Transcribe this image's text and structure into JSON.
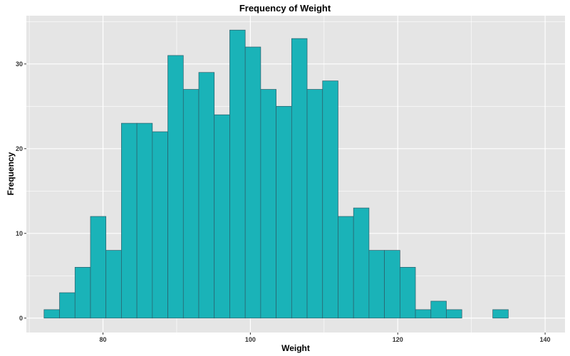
{
  "chart_data": {
    "type": "bar",
    "title": "Frequency of Weight",
    "xlabel": "Weight",
    "ylabel": "Frequency",
    "colors": {
      "fill": "#1ab3b8",
      "stroke": "#2c5e6a",
      "panel": "#e5e5e5",
      "grid": "#ffffff"
    },
    "xlim": [
      69.6,
      142.7
    ],
    "ylim": [
      -1.7,
      35.7
    ],
    "x_ticks": [
      80,
      100,
      120,
      140
    ],
    "y_ticks": [
      0,
      10,
      20,
      30
    ],
    "bin_width": 2.1,
    "bin_start": 72.0,
    "values": [
      1,
      3,
      6,
      12,
      8,
      23,
      23,
      22,
      31,
      27,
      29,
      24,
      34,
      32,
      27,
      25,
      33,
      27,
      28,
      12,
      13,
      8,
      8,
      6,
      1,
      2,
      1,
      0,
      0,
      1
    ],
    "grid": true,
    "legend": "none"
  }
}
